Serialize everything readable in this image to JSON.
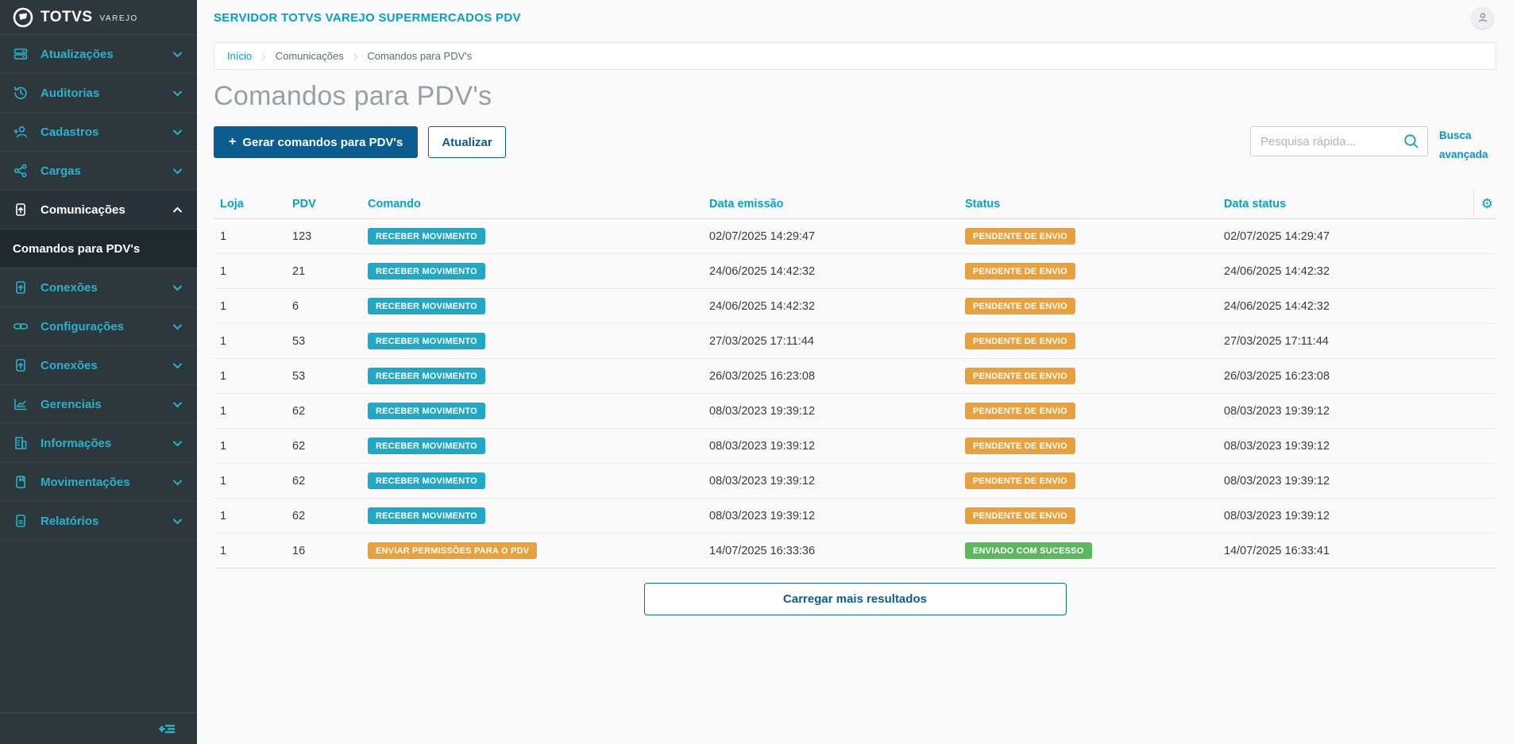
{
  "colors": {
    "sidebar_bg": "#2d383d",
    "accent_cyan": "#2ab2cc",
    "header_cyan": "#00a4c5",
    "primary_blue": "#0c5d8f",
    "badge_info": "#20a9c6",
    "badge_warning": "#e9a23b",
    "badge_success": "#5cb85c"
  },
  "sidebar": {
    "logo": {
      "brand": "TOTVS",
      "sub": "VAREJO"
    },
    "items": [
      {
        "id": "atualizacoes",
        "label": "Atualizações",
        "icon": "server-icon",
        "active": false
      },
      {
        "id": "auditorias",
        "label": "Auditorias",
        "icon": "history-icon",
        "active": false
      },
      {
        "id": "cadastros",
        "label": "Cadastros",
        "icon": "user-add-icon",
        "active": false
      },
      {
        "id": "cargas",
        "label": "Cargas",
        "icon": "share-icon",
        "active": false
      },
      {
        "id": "comunicacoes",
        "label": "Comunicações",
        "icon": "file-upload-icon",
        "active": true
      },
      {
        "id": "conexoes",
        "label": "Conexões",
        "icon": "file-upload-icon",
        "active": false
      },
      {
        "id": "configuracoes",
        "label": "Configurações",
        "icon": "link-icon",
        "active": false
      },
      {
        "id": "conexoes-2",
        "label": "Conexões",
        "icon": "file-upload-icon",
        "active": false
      },
      {
        "id": "gerenciais",
        "label": "Gerenciais",
        "icon": "chart-icon",
        "active": false
      },
      {
        "id": "informacoes",
        "label": "Informações",
        "icon": "building-icon",
        "active": false
      },
      {
        "id": "movimentacoes",
        "label": "Movimentações",
        "icon": "book-icon",
        "active": false
      },
      {
        "id": "relatorios",
        "label": "Relatórios",
        "icon": "report-icon",
        "active": false
      }
    ],
    "submenu": {
      "parent": "comunicacoes",
      "label": "Comandos para PDV's",
      "active": true
    }
  },
  "topbar": {
    "title": "SERVIDOR TOTVS VAREJO SUPERMERCADOS PDV"
  },
  "breadcrumb": [
    "Início",
    "Comunicações",
    "Comandos para PDV's"
  ],
  "page": {
    "title": "Comandos para PDV's"
  },
  "toolbar": {
    "generate_label": "Gerar comandos para PDV's",
    "refresh_label": "Atualizar",
    "search_placeholder": "Pesquisa rápida...",
    "search_value": "",
    "advanced_search_label": "Busca avançada"
  },
  "table": {
    "columns": [
      "Loja",
      "PDV",
      "Comando",
      "Data emissão",
      "Status",
      "Data status"
    ],
    "rows": [
      {
        "loja": "1",
        "pdv": "123",
        "comando": "RECEBER MOVIMENTO",
        "comando_type": "info",
        "data_emissao": "02/07/2025 14:29:47",
        "status": "PENDENTE DE ENVIO",
        "status_type": "warning",
        "data_status": "02/07/2025 14:29:47"
      },
      {
        "loja": "1",
        "pdv": "21",
        "comando": "RECEBER MOVIMENTO",
        "comando_type": "info",
        "data_emissao": "24/06/2025 14:42:32",
        "status": "PENDENTE DE ENVIO",
        "status_type": "warning",
        "data_status": "24/06/2025 14:42:32"
      },
      {
        "loja": "1",
        "pdv": "6",
        "comando": "RECEBER MOVIMENTO",
        "comando_type": "info",
        "data_emissao": "24/06/2025 14:42:32",
        "status": "PENDENTE DE ENVIO",
        "status_type": "warning",
        "data_status": "24/06/2025 14:42:32"
      },
      {
        "loja": "1",
        "pdv": "53",
        "comando": "RECEBER MOVIMENTO",
        "comando_type": "info",
        "data_emissao": "27/03/2025 17:11:44",
        "status": "PENDENTE DE ENVIO",
        "status_type": "warning",
        "data_status": "27/03/2025 17:11:44"
      },
      {
        "loja": "1",
        "pdv": "53",
        "comando": "RECEBER MOVIMENTO",
        "comando_type": "info",
        "data_emissao": "26/03/2025 16:23:08",
        "status": "PENDENTE DE ENVIO",
        "status_type": "warning",
        "data_status": "26/03/2025 16:23:08"
      },
      {
        "loja": "1",
        "pdv": "62",
        "comando": "RECEBER MOVIMENTO",
        "comando_type": "info",
        "data_emissao": "08/03/2023 19:39:12",
        "status": "PENDENTE DE ENVIO",
        "status_type": "warning",
        "data_status": "08/03/2023 19:39:12"
      },
      {
        "loja": "1",
        "pdv": "62",
        "comando": "RECEBER MOVIMENTO",
        "comando_type": "info",
        "data_emissao": "08/03/2023 19:39:12",
        "status": "PENDENTE DE ENVIO",
        "status_type": "warning",
        "data_status": "08/03/2023 19:39:12"
      },
      {
        "loja": "1",
        "pdv": "62",
        "comando": "RECEBER MOVIMENTO",
        "comando_type": "info",
        "data_emissao": "08/03/2023 19:39:12",
        "status": "PENDENTE DE ENVIO",
        "status_type": "warning",
        "data_status": "08/03/2023 19:39:12"
      },
      {
        "loja": "1",
        "pdv": "62",
        "comando": "RECEBER MOVIMENTO",
        "comando_type": "info",
        "data_emissao": "08/03/2023 19:39:12",
        "status": "PENDENTE DE ENVIO",
        "status_type": "warning",
        "data_status": "08/03/2023 19:39:12"
      },
      {
        "loja": "1",
        "pdv": "16",
        "comando": "ENVIAR PERMISSÕES PARA O PDV",
        "comando_type": "warning",
        "data_emissao": "14/07/2025 16:33:36",
        "status": "ENVIADO COM SUCESSO",
        "status_type": "success",
        "data_status": "14/07/2025 16:33:41"
      }
    ],
    "load_more_label": "Carregar mais resultados"
  }
}
